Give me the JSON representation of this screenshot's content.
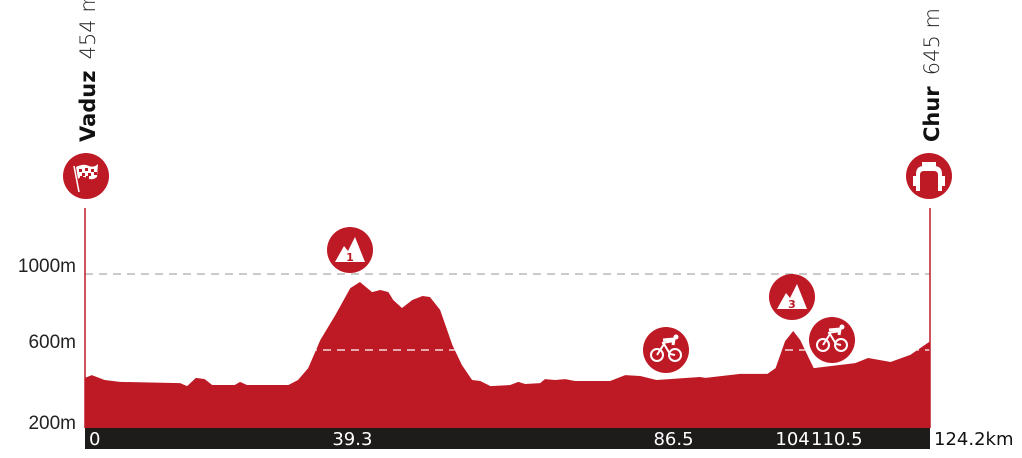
{
  "chart_data": {
    "type": "area",
    "title": "",
    "xlabel": "",
    "ylabel": "",
    "x_unit": "km",
    "y_unit": "m",
    "xlim": [
      0,
      124.2
    ],
    "ylim": [
      200,
      1000
    ],
    "y_ticks": [
      {
        "value": 200,
        "label": "200m"
      },
      {
        "value": 600,
        "label": "600m"
      },
      {
        "value": 1000,
        "label": "1000m"
      }
    ],
    "x_ticks": [
      {
        "value": 0,
        "label": "0"
      },
      {
        "value": 39.3,
        "label": "39.3"
      },
      {
        "value": 86.5,
        "label": "86.5"
      },
      {
        "value": 104,
        "label": "104"
      },
      {
        "value": 110.5,
        "label": "110.5"
      }
    ],
    "x_end_label": "124.2km",
    "profile_color": "#BE1A26",
    "axis_bar_color": "#1E1C1B",
    "start": {
      "city": "Vaduz",
      "altitude": "454 m",
      "icon": "checkered-flag-icon"
    },
    "finish": {
      "city": "Chur",
      "altitude": "645 m",
      "icon": "finish-arch-icon"
    },
    "markers": [
      {
        "type": "kom",
        "category": "1",
        "km": 39.3,
        "icon": "mountain-icon"
      },
      {
        "type": "sprint",
        "km": 86.5,
        "icon": "cyclist-icon"
      },
      {
        "type": "kom",
        "category": "3",
        "km": 104,
        "icon": "mountain-icon"
      },
      {
        "type": "sprint",
        "km": 110.5,
        "icon": "cyclist-icon"
      }
    ],
    "points": [
      [
        0,
        453
      ],
      [
        1.0,
        468
      ],
      [
        2.9,
        442
      ],
      [
        5.1,
        432
      ],
      [
        14,
        426
      ],
      [
        15,
        410
      ],
      [
        16.3,
        453
      ],
      [
        17.6,
        447
      ],
      [
        18.7,
        416
      ],
      [
        22,
        416
      ],
      [
        22.8,
        432
      ],
      [
        23.8,
        416
      ],
      [
        29.9,
        416
      ],
      [
        31.3,
        442
      ],
      [
        32.8,
        505
      ],
      [
        34.6,
        653
      ],
      [
        36.8,
        784
      ],
      [
        39,
        926
      ],
      [
        40.4,
        958
      ],
      [
        42.2,
        905
      ],
      [
        43.4,
        916
      ],
      [
        44.6,
        905
      ],
      [
        45.3,
        863
      ],
      [
        46.6,
        821
      ],
      [
        48.1,
        863
      ],
      [
        49.6,
        884
      ],
      [
        50.7,
        879
      ],
      [
        52.2,
        811
      ],
      [
        54,
        626
      ],
      [
        55.4,
        521
      ],
      [
        56.9,
        442
      ],
      [
        58.1,
        437
      ],
      [
        59.6,
        410
      ],
      [
        62.5,
        416
      ],
      [
        63.7,
        432
      ],
      [
        64.7,
        421
      ],
      [
        66.9,
        426
      ],
      [
        67.6,
        447
      ],
      [
        69.1,
        442
      ],
      [
        70.6,
        447
      ],
      [
        72,
        437
      ],
      [
        77.2,
        437
      ],
      [
        79.4,
        468
      ],
      [
        81.6,
        463
      ],
      [
        84,
        442
      ],
      [
        90.4,
        458
      ],
      [
        91.2,
        453
      ],
      [
        96.3,
        474
      ],
      [
        100.3,
        474
      ],
      [
        101.5,
        505
      ],
      [
        102.9,
        647
      ],
      [
        104.1,
        700
      ],
      [
        105.1,
        653
      ],
      [
        107.1,
        505
      ],
      [
        113.2,
        531
      ],
      [
        115.1,
        558
      ],
      [
        118.4,
        537
      ],
      [
        121.3,
        574
      ],
      [
        124.2,
        645
      ]
    ]
  }
}
